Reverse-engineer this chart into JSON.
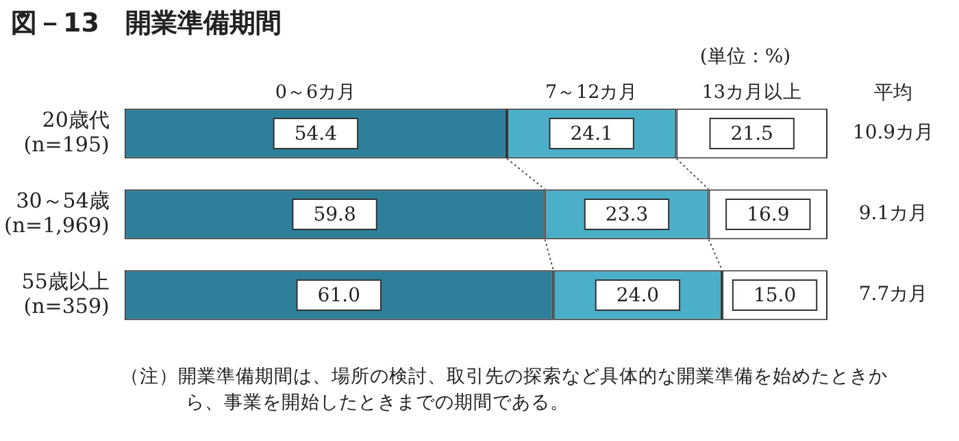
{
  "chart_data": {
    "type": "bar",
    "orientation": "horizontal",
    "stacked": true,
    "title": "図－13　開業準備期間",
    "categories": [
      "20歳代\n(n=195)",
      "30～54歳\n(n=1,969)",
      "55歳以上\n(n=359)"
    ],
    "series": [
      {
        "name": "0～6カ月",
        "color": "#2e7f99",
        "values": [
          54.4,
          59.8,
          61.0
        ],
        "value_labels": [
          "54.4",
          "59.8",
          "61.0"
        ]
      },
      {
        "name": "7～12カ月",
        "color": "#4bafc9",
        "values": [
          24.1,
          23.3,
          24.0
        ],
        "value_labels": [
          "24.1",
          "23.3",
          "24.0"
        ]
      },
      {
        "name": "13カ月以上",
        "color": "#ffffff",
        "values": [
          21.5,
          16.9,
          15.0
        ],
        "value_labels": [
          "21.5",
          "16.9",
          "15.0"
        ]
      }
    ],
    "annotations": [
      "(単位：%)",
      "平均",
      "10.9カ月",
      "9.1カ月",
      "7.7カ月",
      "（注）開業準備期間は、場所の検討、取引先の探索など具体的な開業準備を始めたときから、事業を開始したときまでの期間である。"
    ]
  }
}
